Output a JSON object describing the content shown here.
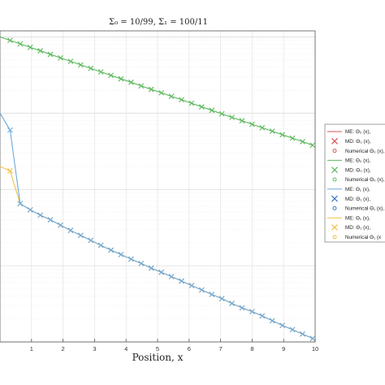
{
  "chart_data": {
    "type": "line",
    "title": "Σ₀ = 10/99, Σ₁ = 100/11",
    "xlabel": "Position, x",
    "ylabel": "",
    "xlim": [
      0,
      10
    ],
    "xticks": [
      "1",
      "2",
      "3",
      "4",
      "5",
      "6",
      "7",
      "8",
      "9",
      "10"
    ],
    "y_scale": "log",
    "grid": true,
    "legend_position": "right",
    "legend": [
      {
        "label": "ME: Θ₀ (x),",
        "marker": "line",
        "color": "#d9534f"
      },
      {
        "label": "MD: Θ₀ (x),",
        "marker": "x",
        "color": "#d9534f"
      },
      {
        "label": "Numerical Θ₀ (x),",
        "marker": "circle",
        "color": "#d9534f"
      },
      {
        "label": "ME: Θ₀ (x),",
        "marker": "line",
        "color": "#5cb85c"
      },
      {
        "label": "MD: Θ₀ (x),",
        "marker": "x",
        "color": "#5cb85c"
      },
      {
        "label": "Numerical Θ₀ (x),",
        "marker": "circle",
        "color": "#5cb85c"
      },
      {
        "label": "ME: Θ₁ (x),",
        "marker": "line",
        "color": "#6fa8dc"
      },
      {
        "label": "MD: Θ₁ (x),",
        "marker": "x",
        "color": "#3d78c2"
      },
      {
        "label": "Numerical Θ₁ (x),",
        "marker": "circle",
        "color": "#3d78c2"
      },
      {
        "label": "ME: Θ₁ (x),",
        "marker": "line",
        "color": "#f0c040"
      },
      {
        "label": "MD: Θ₁ (x),",
        "marker": "x",
        "color": "#f0c040"
      },
      {
        "label": "Numerical Θ₁ (x",
        "marker": "circle",
        "color": "#f0c040"
      }
    ],
    "series": [
      {
        "color": "#5cb85c",
        "x": [
          0.0,
          0.32,
          0.64,
          0.96,
          1.28,
          1.6,
          1.92,
          2.24,
          2.56,
          2.88,
          3.2,
          3.52,
          3.84,
          4.16,
          4.48,
          4.8,
          5.12,
          5.44,
          5.76,
          6.08,
          6.4,
          6.72,
          7.04,
          7.36,
          7.68,
          8.0,
          8.32,
          8.64,
          8.96,
          9.28,
          9.6,
          9.92
        ],
        "y": [
          1.0,
          0.9,
          0.81,
          0.73,
          0.657,
          0.59,
          0.531,
          0.478,
          0.43,
          0.387,
          0.348,
          0.313,
          0.282,
          0.254,
          0.228,
          0.205,
          0.185,
          0.166,
          0.15,
          0.135,
          0.121,
          0.109,
          0.098,
          0.088,
          0.0795,
          0.0715,
          0.0644,
          0.058,
          0.0522,
          0.047,
          0.0423,
          0.038
        ]
      },
      {
        "color": "#f0c040",
        "x": [
          0.0,
          0.32,
          0.64,
          0.96,
          1.28,
          1.6,
          1.92,
          2.24,
          2.56,
          2.88,
          3.2,
          3.52,
          3.84,
          4.16,
          4.48,
          4.8,
          5.12,
          5.44,
          5.76,
          6.08,
          6.4,
          6.72,
          7.04,
          7.36,
          7.68,
          8.0,
          8.32,
          8.64,
          8.96,
          9.28,
          9.6,
          9.92
        ],
        "y": [
          0.02,
          0.0175,
          0.0065,
          0.0054,
          0.0046,
          0.004,
          0.0034,
          0.0029,
          0.0025,
          0.00215,
          0.00185,
          0.0016,
          0.0014,
          0.00122,
          0.00107,
          0.00093,
          0.00082,
          0.00072,
          0.00063,
          0.00055,
          0.00048,
          0.00042,
          0.00037,
          0.00032,
          0.00028,
          0.00025,
          0.00022,
          0.00019,
          0.000165,
          0.000145,
          0.000127,
          0.000111
        ]
      },
      {
        "color": "#6fa8dc",
        "x": [
          0.0,
          0.32,
          0.64,
          0.96,
          1.28,
          1.6,
          1.92,
          2.24,
          2.56,
          2.88,
          3.2,
          3.52,
          3.84,
          4.16,
          4.48,
          4.8,
          5.12,
          5.44,
          5.76,
          6.08,
          6.4,
          6.72,
          7.04,
          7.36,
          7.68,
          8.0,
          8.32,
          8.64,
          8.96,
          9.28,
          9.6,
          9.92
        ],
        "y": [
          0.1,
          0.06,
          0.0065,
          0.0054,
          0.0046,
          0.004,
          0.0034,
          0.0029,
          0.0025,
          0.00215,
          0.00185,
          0.0016,
          0.0014,
          0.00122,
          0.00107,
          0.00093,
          0.00082,
          0.00072,
          0.00063,
          0.00055,
          0.00048,
          0.00042,
          0.00037,
          0.00032,
          0.00028,
          0.00025,
          0.00022,
          0.00019,
          0.000165,
          0.000145,
          0.000127,
          0.000111
        ]
      }
    ]
  }
}
